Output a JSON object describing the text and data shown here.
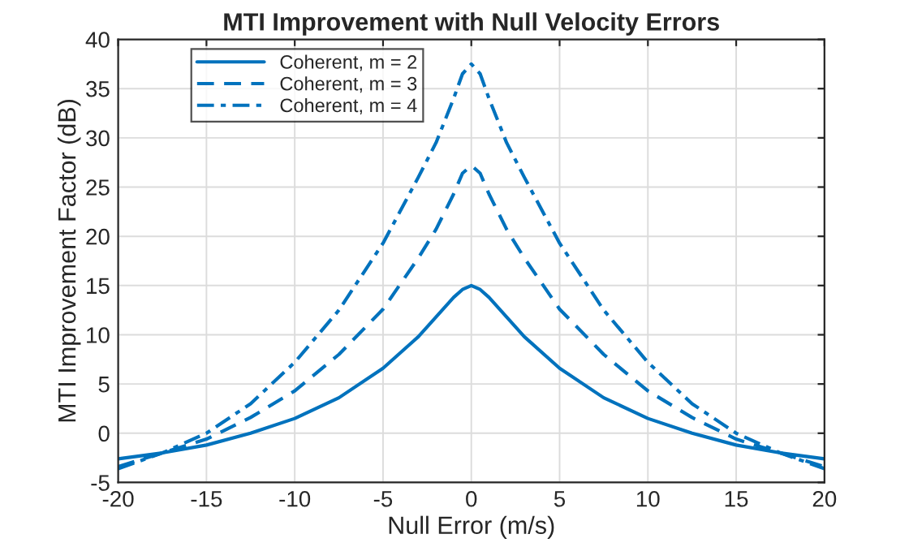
{
  "chart_data": {
    "type": "line",
    "title": "MTI Improvement with Null Velocity Errors",
    "xlabel": "Null Error (m/s)",
    "ylabel": "MTI Improvement Factor (dB)",
    "x": [
      -20,
      -17.5,
      -15,
      -12.5,
      -10,
      -7.5,
      -5,
      -3,
      -2,
      -1,
      -0.5,
      0,
      0.5,
      1,
      2,
      3,
      5,
      7.5,
      10,
      12.5,
      15,
      17.5,
      20
    ],
    "series": [
      {
        "name": "Coherent, m = 2",
        "color": "#0072bd",
        "line_style": "solid",
        "values": [
          -2.6,
          -2.0,
          -1.2,
          0,
          1.5,
          3.6,
          6.6,
          9.8,
          11.8,
          13.8,
          14.6,
          15,
          14.6,
          13.8,
          11.8,
          9.8,
          6.6,
          3.6,
          1.5,
          0,
          -1.2,
          -2.0,
          -2.6
        ]
      },
      {
        "name": "Coherent, m = 3",
        "color": "#0072bd",
        "line_style": "dashed",
        "values": [
          -3.4,
          -2.0,
          -0.6,
          1.6,
          4.3,
          8,
          12.6,
          17.8,
          20.7,
          24.3,
          26.4,
          27.2,
          26.4,
          24.3,
          20.7,
          17.8,
          12.6,
          8,
          4.3,
          1.6,
          -0.6,
          -2.0,
          -3.4
        ]
      },
      {
        "name": "Coherent, m = 4",
        "color": "#0072bd",
        "line_style": "dashdot",
        "values": [
          -3.6,
          -2.0,
          0,
          3,
          7.2,
          12.5,
          19.3,
          26,
          29.5,
          34,
          36.5,
          37.5,
          36.5,
          34,
          29.5,
          26,
          19.3,
          12.5,
          7.2,
          3,
          0,
          -2.0,
          -3.6
        ]
      }
    ],
    "xlim": [
      -20,
      20
    ],
    "ylim": [
      -5,
      40
    ],
    "xticks": [
      -20,
      -15,
      -10,
      -5,
      0,
      5,
      10,
      15,
      20
    ],
    "yticks": [
      -5,
      0,
      5,
      10,
      15,
      20,
      25,
      30,
      35,
      40
    ],
    "grid": true,
    "legend": "top left"
  }
}
